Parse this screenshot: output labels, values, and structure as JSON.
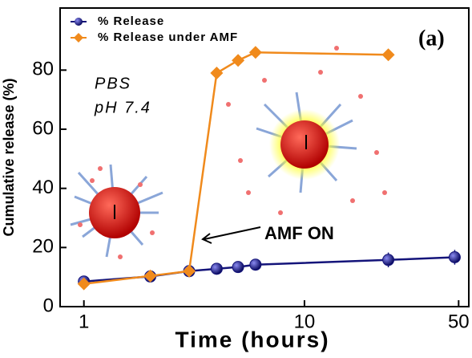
{
  "chart_data": {
    "type": "scatter",
    "xlabel": "Time (hours)",
    "ylabel": "Cumulative release (%)",
    "xscale": "log",
    "xlim": [
      0.78,
      55.6
    ],
    "ylim": [
      0,
      101
    ],
    "xticks": [
      1,
      10,
      50
    ],
    "yticks": [
      0,
      20,
      40,
      60,
      80
    ],
    "legend": "upper left",
    "annotations": [
      "PBS",
      "pH 7.4",
      "AMF ON",
      "(a)"
    ],
    "series": [
      {
        "name": "% Release",
        "color": "#14147a",
        "marker": "circle",
        "x": [
          1,
          2,
          3,
          4,
          5,
          6,
          24,
          48
        ],
        "values": [
          8.5,
          10.2,
          12,
          12.8,
          13.4,
          14.2,
          15.8,
          16.7
        ],
        "errors": [
          1,
          1,
          1,
          1,
          1.5,
          1.5,
          2.5,
          2.5
        ]
      },
      {
        "name": "% Release under AMF",
        "color": "#f08a1c",
        "marker": "diamond",
        "x": [
          1,
          2,
          3,
          4,
          5,
          6,
          24
        ],
        "values": [
          7.7,
          10.4,
          12,
          79,
          83.3,
          86,
          85.2
        ]
      }
    ]
  }
}
